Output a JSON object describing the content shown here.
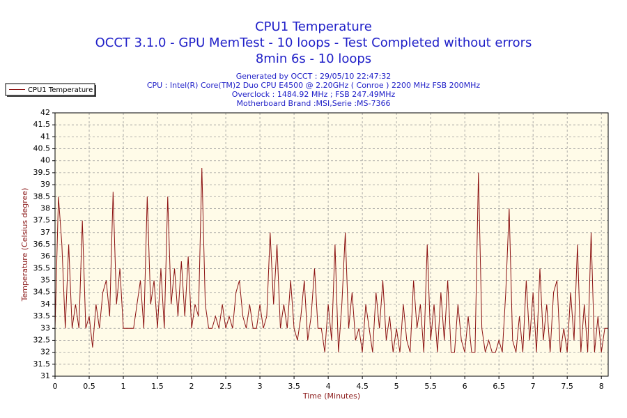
{
  "chart_data": {
    "type": "line",
    "title": [
      "CPU1 Temperature",
      "OCCT 3.1.0 - GPU MemTest - 10 loops - Test Completed without errors",
      "8min 6s - 10 loops"
    ],
    "subtitle": [
      "Generated by OCCT : 29/05/10 22:47:32",
      "CPU : Intel(R) Core(TM)2 Duo CPU E4500 @ 2.20GHz ( Conroe ) 2200 MHz FSB 200MHz",
      "Overclock : 1484.92 MHz ; FSB 247.49MHz",
      "Motherboard Brand :MSI,Serie :MS-7366"
    ],
    "xlabel": "Time (Minutes)",
    "ylabel": "Temperature (Celsius degree)",
    "x": [
      0,
      0.05,
      0.1,
      0.15,
      0.2,
      0.25,
      0.3,
      0.35,
      0.4,
      0.45,
      0.5,
      0.55,
      0.6,
      0.65,
      0.7,
      0.75,
      0.8,
      0.85,
      0.9,
      0.95,
      1,
      1.05,
      1.1,
      1.15,
      1.2,
      1.25,
      1.3,
      1.35,
      1.4,
      1.45,
      1.5,
      1.55,
      1.6,
      1.65,
      1.7,
      1.75,
      1.8,
      1.85,
      1.9,
      1.95,
      2,
      2.05,
      2.1,
      2.15,
      2.2,
      2.25,
      2.3,
      2.35,
      2.4,
      2.45,
      2.5,
      2.55,
      2.6,
      2.65,
      2.7,
      2.75,
      2.8,
      2.85,
      2.9,
      2.95,
      3,
      3.05,
      3.1,
      3.15,
      3.2,
      3.25,
      3.3,
      3.35,
      3.4,
      3.45,
      3.5,
      3.55,
      3.6,
      3.65,
      3.7,
      3.75,
      3.8,
      3.85,
      3.9,
      3.95,
      4,
      4.05,
      4.1,
      4.15,
      4.2,
      4.25,
      4.3,
      4.35,
      4.4,
      4.45,
      4.5,
      4.55,
      4.6,
      4.65,
      4.7,
      4.75,
      4.8,
      4.85,
      4.9,
      4.95,
      5,
      5.05,
      5.1,
      5.15,
      5.2,
      5.25,
      5.3,
      5.35,
      5.4,
      5.45,
      5.5,
      5.55,
      5.6,
      5.65,
      5.7,
      5.75,
      5.8,
      5.85,
      5.9,
      5.95,
      6,
      6.05,
      6.1,
      6.15,
      6.2,
      6.25,
      6.3,
      6.35,
      6.4,
      6.45,
      6.5,
      6.55,
      6.6,
      6.65,
      6.7,
      6.75,
      6.8,
      6.85,
      6.9,
      6.95,
      7,
      7.05,
      7.1,
      7.15,
      7.2,
      7.25,
      7.3,
      7.35,
      7.4,
      7.45,
      7.5,
      7.55,
      7.6,
      7.65,
      7.7,
      7.75,
      7.8,
      7.85,
      7.9,
      7.95,
      8,
      8.05,
      8.1
    ],
    "series": [
      {
        "name": "CPU1 Temperature",
        "color": "#8b1010",
        "values": [
          33,
          38.5,
          36.5,
          33,
          36.5,
          33,
          34,
          33,
          37.5,
          33,
          33.5,
          32.2,
          34,
          33,
          34.5,
          35,
          33.5,
          38.7,
          34,
          35.5,
          33,
          33,
          33,
          33,
          34,
          35,
          33,
          38.5,
          34,
          35,
          33,
          35.5,
          33,
          38.5,
          34,
          35.5,
          33.5,
          35.8,
          33.5,
          36,
          33,
          34,
          33.5,
          39.7,
          34,
          33,
          33,
          33.5,
          33,
          34,
          33,
          33.5,
          33,
          34.5,
          35,
          33.5,
          33,
          34,
          33,
          33,
          34,
          33,
          33.5,
          37,
          34,
          36.5,
          33,
          34,
          33,
          35,
          33,
          32.5,
          33.5,
          35,
          32.5,
          33.5,
          35.5,
          33,
          33,
          32,
          34,
          32.5,
          36.5,
          32,
          34,
          37,
          33,
          34.5,
          32.5,
          33,
          32,
          34,
          33,
          32,
          34.5,
          33,
          35,
          32.5,
          33.5,
          32,
          33,
          32,
          34,
          32.5,
          32,
          35,
          33,
          34,
          32,
          36.5,
          32.5,
          34,
          32,
          34.5,
          32.5,
          35,
          32,
          32,
          34,
          32.5,
          32,
          33.5,
          32,
          32,
          39.5,
          33,
          32,
          32.5,
          32,
          32,
          32.5,
          32,
          34.5,
          38,
          32.5,
          32,
          33.5,
          32,
          35,
          32.5,
          34.5,
          32,
          35.5,
          32.5,
          34,
          32,
          34.5,
          35,
          32,
          33,
          32,
          34.5,
          32.5,
          36.5,
          32,
          34,
          32,
          37,
          32,
          33.5,
          32,
          33,
          33
        ]
      }
    ],
    "xlim": [
      0,
      8.1
    ],
    "ylim": [
      31,
      42
    ],
    "xticks": [
      0,
      0.5,
      1,
      1.5,
      2,
      2.5,
      3,
      3.5,
      4,
      4.5,
      5,
      5.5,
      6,
      6.5,
      7,
      7.5,
      8
    ],
    "yticks": [
      31,
      31.5,
      32,
      32.5,
      33,
      33.5,
      34,
      34.5,
      35,
      35.5,
      36,
      36.5,
      37,
      37.5,
      38,
      38.5,
      39,
      39.5,
      40,
      40.5,
      41,
      41.5,
      42
    ],
    "grid": true,
    "legend": "top-left"
  }
}
